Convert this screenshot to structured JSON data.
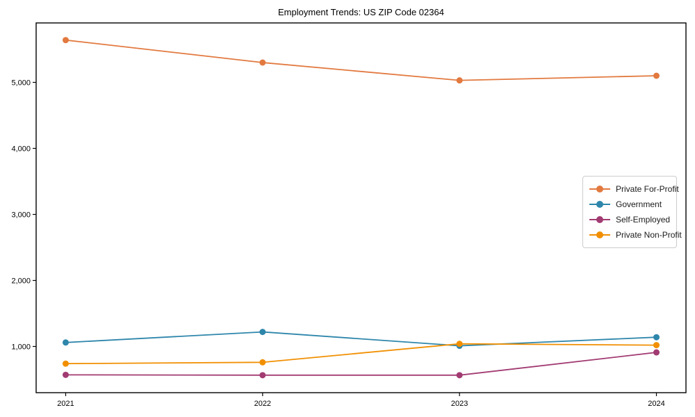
{
  "chart_data": {
    "type": "line",
    "title": "Employment Trends: US ZIP Code 02364",
    "x": [
      2021,
      2022,
      2023,
      2024
    ],
    "xtick_labels": [
      "2021",
      "2022",
      "2023",
      "2024"
    ],
    "series": [
      {
        "name": "Private For-Profit",
        "color": "#E2793F",
        "values": [
          5640,
          5300,
          5030,
          5100
        ]
      },
      {
        "name": "Government",
        "color": "#2E86AB",
        "values": [
          1060,
          1220,
          1010,
          1140
        ]
      },
      {
        "name": "Self-Employed",
        "color": "#A23B72",
        "values": [
          570,
          565,
          565,
          910
        ]
      },
      {
        "name": "Private Non-Profit",
        "color": "#F18F01",
        "values": [
          740,
          760,
          1040,
          1020
        ]
      }
    ],
    "ylim": [
      300,
      5900
    ],
    "yticks": [
      1000,
      2000,
      3000,
      4000,
      5000
    ],
    "ytick_labels": [
      "1,000",
      "2,000",
      "3,000",
      "4,000",
      "5,000"
    ],
    "xlabel": "",
    "ylabel": "",
    "grid": false,
    "legend_position": "center-right",
    "frame_color": "#000000",
    "background_color": "#ffffff"
  }
}
